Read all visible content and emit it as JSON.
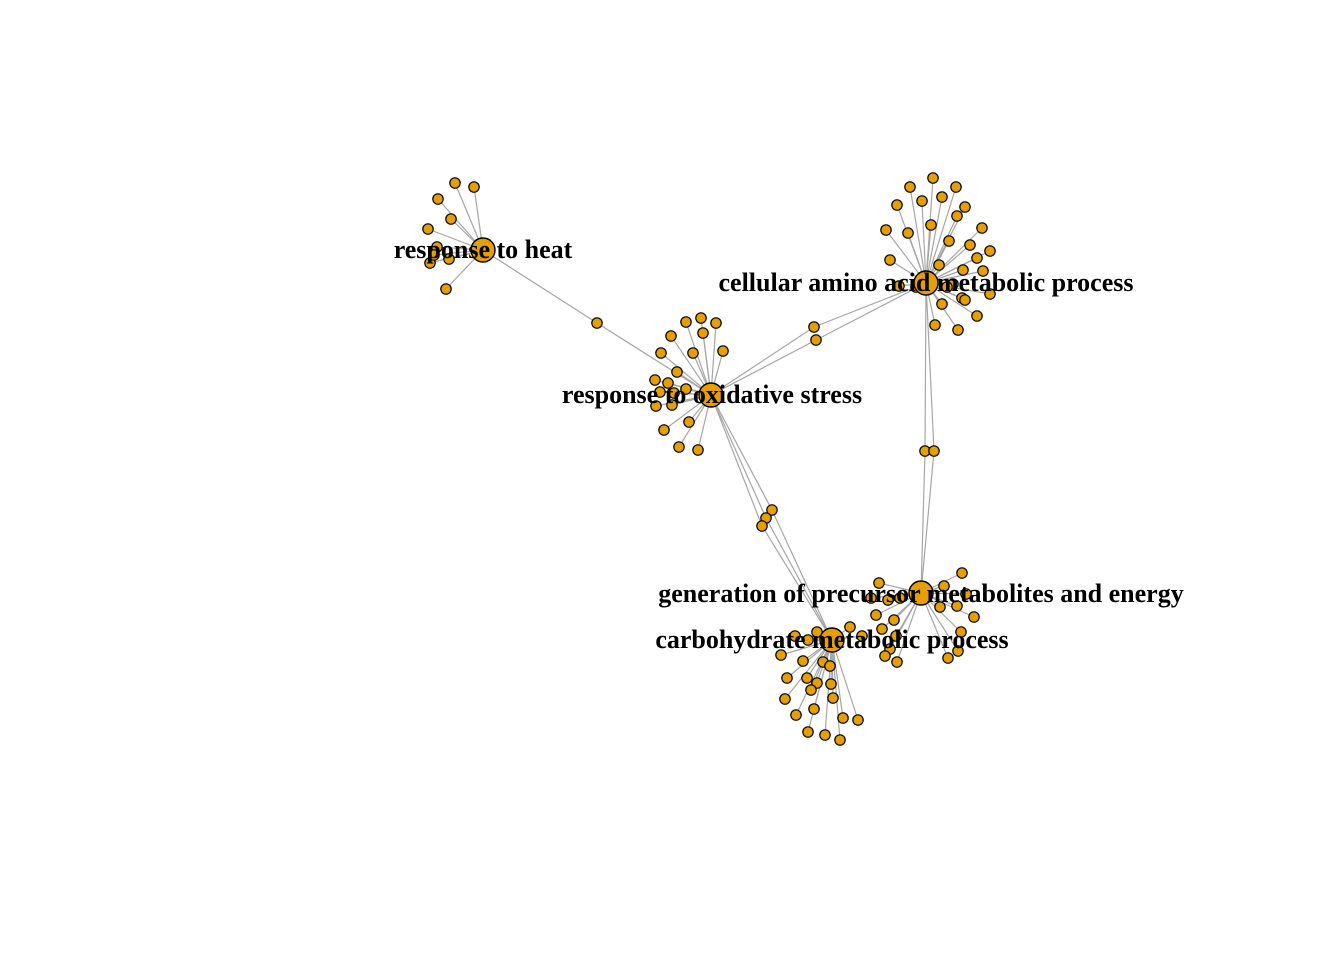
{
  "diagram": {
    "type": "gene-concept network",
    "colors": {
      "node_fill": "#e69f00",
      "node_stroke": "#000000",
      "edge": "#a6a6a6",
      "label": "#000000"
    },
    "hubs": [
      {
        "id": "heat",
        "label": "response to heat"
      },
      {
        "id": "amino",
        "label": "cellular amino acid metabolic process"
      },
      {
        "id": "oxid",
        "label": "response to oxidative stress"
      },
      {
        "id": "precursor",
        "label": "generation of precursor metabolites and energy"
      },
      {
        "id": "carb",
        "label": "carbohydrate metabolic process"
      }
    ],
    "gene_counts": {
      "heat": 10,
      "amino": 31,
      "oxid": 20,
      "precursor": 20,
      "carb": 23
    },
    "shared_genes": [
      {
        "between": [
          "heat",
          "oxid"
        ],
        "count": 1
      },
      {
        "between": [
          "oxid",
          "amino"
        ],
        "count": 2
      },
      {
        "between": [
          "amino",
          "precursor"
        ],
        "count": 2
      },
      {
        "between": [
          "oxid",
          "carb"
        ],
        "count": 3
      }
    ]
  }
}
